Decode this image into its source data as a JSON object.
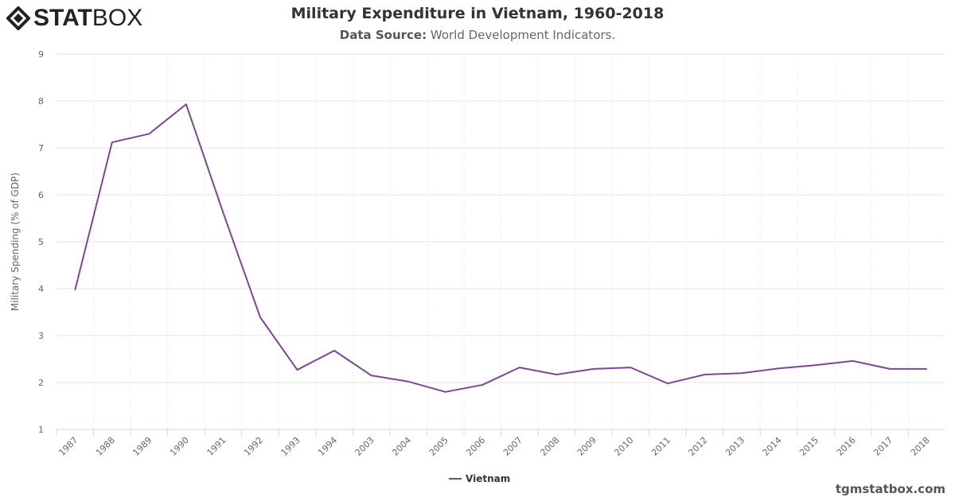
{
  "logo": {
    "bold": "STAT",
    "light": "BOX"
  },
  "title": "Military Expenditure in Vietnam, 1960-2018",
  "subtitle": {
    "label": "Data Source:",
    "value": "World Development Indicators."
  },
  "credit": "tgmstatbox.com",
  "colors": {
    "series": "#7b4796"
  },
  "chart_data": {
    "type": "line",
    "title": "Military Expenditure in Vietnam, 1960-2018",
    "xlabel": "",
    "ylabel": "Military Spending (% of GDP)",
    "ylim": [
      1,
      9
    ],
    "yticks": [
      1,
      2,
      3,
      4,
      5,
      6,
      7,
      8,
      9
    ],
    "grid": true,
    "legend": "bottom-center",
    "categories": [
      "1987",
      "1988",
      "1989",
      "1990",
      "1991",
      "1992",
      "1993",
      "1994",
      "2003",
      "2004",
      "2005",
      "2006",
      "2007",
      "2008",
      "2009",
      "2010",
      "2011",
      "2012",
      "2013",
      "2014",
      "2015",
      "2016",
      "2017",
      "2018"
    ],
    "series": [
      {
        "name": "Vietnam",
        "values": [
          3.97,
          7.12,
          7.3,
          7.93,
          5.62,
          3.39,
          2.27,
          2.68,
          2.15,
          2.02,
          1.8,
          1.95,
          2.32,
          2.17,
          2.29,
          2.32,
          1.98,
          2.17,
          2.2,
          2.3,
          2.37,
          2.46,
          2.29,
          2.29
        ]
      }
    ]
  }
}
